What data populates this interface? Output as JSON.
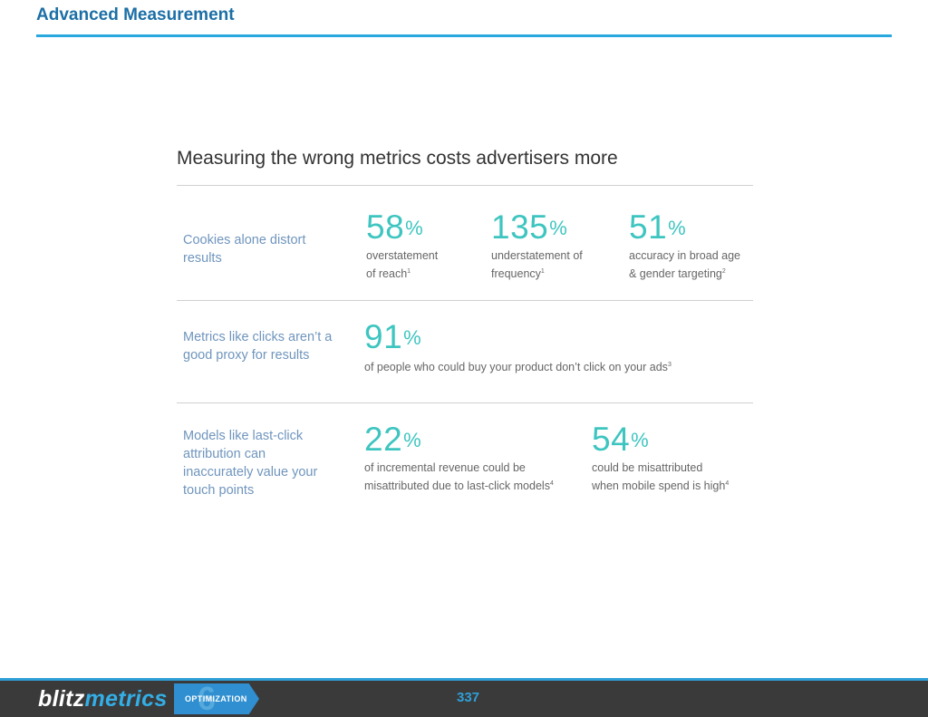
{
  "header": {
    "title": "Advanced Measurement"
  },
  "content": {
    "heading": "Measuring the wrong metrics costs advertisers more",
    "rows": [
      {
        "label": "Cookies alone distort results",
        "stats": [
          {
            "value": "58",
            "unit": "%",
            "desc_line1": "overstatement",
            "desc_line2": "of reach",
            "note": "1"
          },
          {
            "value": "135",
            "unit": "%",
            "desc_line1": "understatement of",
            "desc_line2": "frequency",
            "note": "1"
          },
          {
            "value": "51",
            "unit": "%",
            "desc_line1": "accuracy in broad age",
            "desc_line2": "& gender targeting",
            "note": "2"
          }
        ]
      },
      {
        "label": "Metrics like clicks aren’t a good proxy for results",
        "stats": [
          {
            "value": "91",
            "unit": "%",
            "desc_line1": "of people who could buy your product don’t click on your ads",
            "note": "3"
          }
        ]
      },
      {
        "label": "Models like last-click attribution can inaccurately value your touch points",
        "stats": [
          {
            "value": "22",
            "unit": "%",
            "desc_line1": "of incremental revenue could be",
            "desc_line2": "misattributed due to last-click models",
            "note": "4"
          },
          {
            "value": "54",
            "unit": "%",
            "desc_line1": "could be misattributed",
            "desc_line2": "when mobile spend is high",
            "note": "4"
          }
        ]
      }
    ]
  },
  "footer": {
    "logo_part1": "blitz",
    "logo_part2": "metrics",
    "badge_number": "6",
    "badge_label": "OPTIMIZATION",
    "page_number": "337"
  }
}
